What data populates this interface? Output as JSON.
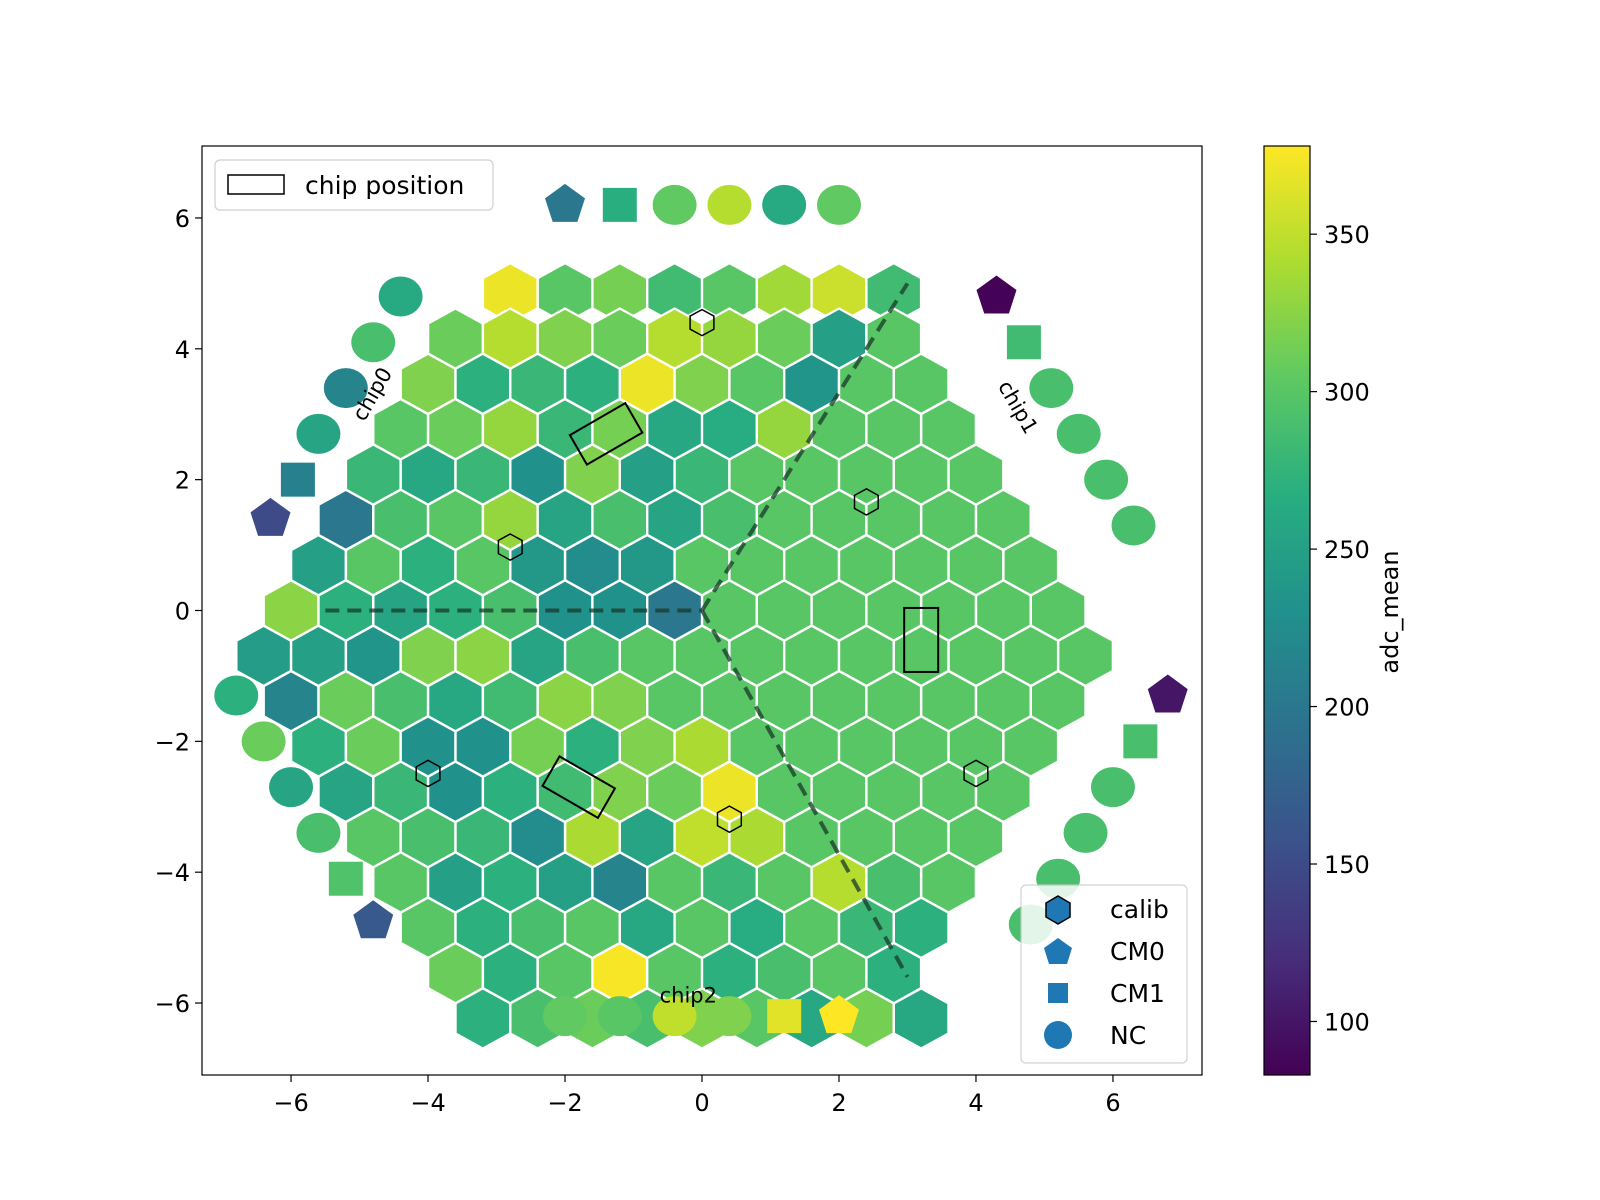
{
  "chart_data": {
    "type": "heatmap",
    "subtype": "hexagonal sensor map",
    "xlim": [
      -7.3,
      7.3
    ],
    "ylim": [
      -7.1,
      7.1
    ],
    "xticks": [
      -6,
      -4,
      -2,
      0,
      2,
      4,
      6
    ],
    "yticks": [
      -6,
      -4,
      -2,
      0,
      2,
      4,
      6
    ],
    "xtick_labels": [
      "−6",
      "−4",
      "−2",
      "0",
      "2",
      "4",
      "6"
    ],
    "ytick_labels": [
      "−6",
      "−4",
      "−2",
      "0",
      "2",
      "4",
      "6"
    ],
    "grid": false,
    "colormap": "viridis",
    "colorbar": {
      "label": "adc_mean",
      "range": [
        83,
        378
      ],
      "ticks": [
        100,
        150,
        200,
        250,
        300,
        350
      ],
      "tick_labels": [
        "100",
        "150",
        "200",
        "250",
        "300",
        "350"
      ]
    },
    "hex_grid": {
      "center": [
        0,
        0
      ],
      "row_spacing": 0.6928,
      "cell_spacing": 0.8,
      "rows": [
        {
          "y_index": 7,
          "x_start": -2.8,
          "values": [
            370,
            300,
            315,
            285,
            300,
            335,
            355,
            285
          ]
        },
        {
          "y_index": 6,
          "x_start": -3.6,
          "values": [
            310,
            345,
            320,
            310,
            345,
            330,
            310,
            250,
            300
          ]
        },
        {
          "y_index": 5,
          "x_start": -4.0,
          "values": [
            320,
            270,
            280,
            270,
            370,
            320,
            300,
            235,
            300,
            300
          ]
        },
        {
          "y_index": 4,
          "x_start": -4.4,
          "values": [
            300,
            310,
            330,
            280,
            315,
            260,
            265,
            330,
            300,
            300,
            300
          ]
        },
        {
          "y_index": 3,
          "x_start": -4.8,
          "values": [
            280,
            260,
            280,
            230,
            320,
            250,
            280,
            300,
            300,
            300,
            300,
            300
          ]
        },
        {
          "y_index": 2,
          "x_start": -5.2,
          "values": [
            200,
            290,
            300,
            330,
            255,
            290,
            255,
            290,
            300,
            300,
            300,
            300,
            300
          ]
        },
        {
          "y_index": 1,
          "x_start": -5.6,
          "values": [
            250,
            300,
            270,
            300,
            240,
            225,
            240,
            300,
            300,
            300,
            300,
            300,
            300,
            300
          ]
        },
        {
          "y_index": 0,
          "x_start": -6.0,
          "values": [
            325,
            270,
            255,
            270,
            290,
            230,
            230,
            200,
            300,
            300,
            300,
            300,
            300,
            300,
            300
          ]
        },
        {
          "y_index": -1,
          "x_start": -6.4,
          "values": [
            245,
            250,
            235,
            320,
            325,
            255,
            290,
            300,
            300,
            300,
            300,
            300,
            300,
            300,
            300,
            300
          ]
        },
        {
          "y_index": -2,
          "x_start": -6.0,
          "values": [
            215,
            310,
            290,
            260,
            285,
            325,
            320,
            300,
            300,
            300,
            300,
            300,
            300,
            300,
            300
          ]
        },
        {
          "y_index": -3,
          "x_start": -5.6,
          "values": [
            270,
            310,
            230,
            230,
            315,
            270,
            320,
            340,
            300,
            300,
            300,
            300,
            300,
            300
          ]
        },
        {
          "y_index": -4,
          "x_start": -5.2,
          "values": [
            255,
            280,
            230,
            270,
            285,
            320,
            310,
            370,
            300,
            300,
            300,
            300,
            300
          ]
        },
        {
          "y_index": -5,
          "x_start": -4.8,
          "values": [
            300,
            290,
            280,
            225,
            340,
            255,
            350,
            340,
            300,
            300,
            300,
            300
          ]
        },
        {
          "y_index": -6,
          "x_start": -4.4,
          "values": [
            300,
            250,
            270,
            250,
            215,
            300,
            280,
            300,
            345,
            290,
            300
          ]
        },
        {
          "y_index": -7,
          "x_start": -4.0,
          "values": [
            300,
            270,
            290,
            300,
            260,
            300,
            265,
            300,
            280,
            270
          ]
        },
        {
          "y_index": -8,
          "x_start": -3.6,
          "values": [
            310,
            270,
            300,
            375,
            300,
            270,
            290,
            300,
            270
          ]
        },
        {
          "y_index": -9,
          "x_start": -3.2,
          "values": [
            270,
            290,
            310,
            290,
            320,
            300,
            260,
            315,
            260
          ]
        }
      ]
    },
    "calib_cells": [
      [
        0,
        4.4
      ],
      [
        -2.8,
        0.97
      ],
      [
        2.4,
        1.66
      ],
      [
        -4.0,
        -2.49
      ],
      [
        4.0,
        -2.49
      ],
      [
        0.4,
        -3.19
      ]
    ],
    "chip_positions": [
      {
        "center": [
          -1.4,
          2.7
        ],
        "angle": -30
      },
      {
        "center": [
          -1.8,
          -2.7
        ],
        "angle": 30
      },
      {
        "center": [
          3.2,
          -0.45
        ],
        "angle": 90
      }
    ],
    "boundaries": [
      {
        "points": [
          [
            -5.5,
            0
          ],
          [
            0,
            0
          ]
        ]
      },
      {
        "points": [
          [
            0,
            0
          ],
          [
            3.0,
            5.0
          ]
        ]
      },
      {
        "points": [
          [
            0,
            0
          ],
          [
            3.0,
            -5.6
          ]
        ]
      }
    ],
    "chip_labels": [
      {
        "text": "chip0",
        "x": -4.8,
        "y": 3.3,
        "rotate": -60
      },
      {
        "text": "chip1",
        "x": 4.6,
        "y": 3.1,
        "rotate": 60
      },
      {
        "text": "chip2",
        "x": -0.2,
        "y": -5.9,
        "rotate": 0
      }
    ],
    "outer_markers": [
      {
        "shape": "pentagon",
        "x": -2.0,
        "y": 6.2,
        "v": 200
      },
      {
        "shape": "square",
        "x": -1.2,
        "y": 6.2,
        "v": 268
      },
      {
        "shape": "circle",
        "x": -0.4,
        "y": 6.2,
        "v": 305
      },
      {
        "shape": "circle",
        "x": 0.4,
        "y": 6.2,
        "v": 345
      },
      {
        "shape": "circle",
        "x": 1.2,
        "y": 6.2,
        "v": 262
      },
      {
        "shape": "circle",
        "x": 2.0,
        "y": 6.2,
        "v": 305
      },
      {
        "shape": "circle",
        "x": -4.4,
        "y": 4.8,
        "v": 262
      },
      {
        "shape": "circle",
        "x": -4.8,
        "y": 4.1,
        "v": 290
      },
      {
        "shape": "circle",
        "x": -5.2,
        "y": 3.4,
        "v": 215
      },
      {
        "shape": "circle",
        "x": -5.6,
        "y": 2.7,
        "v": 255
      },
      {
        "shape": "square",
        "x": -5.9,
        "y": 2.0,
        "v": 210
      },
      {
        "shape": "pentagon",
        "x": -6.3,
        "y": 1.4,
        "v": 150
      },
      {
        "shape": "pentagon",
        "x": 4.3,
        "y": 4.8,
        "v": 85
      },
      {
        "shape": "square",
        "x": 4.7,
        "y": 4.1,
        "v": 285
      },
      {
        "shape": "circle",
        "x": 5.1,
        "y": 3.4,
        "v": 290
      },
      {
        "shape": "circle",
        "x": 5.5,
        "y": 2.7,
        "v": 290
      },
      {
        "shape": "circle",
        "x": 5.9,
        "y": 2.0,
        "v": 290
      },
      {
        "shape": "circle",
        "x": 6.3,
        "y": 1.3,
        "v": 290
      },
      {
        "shape": "circle",
        "x": -6.8,
        "y": -1.3,
        "v": 270
      },
      {
        "shape": "circle",
        "x": -6.4,
        "y": -2.0,
        "v": 310
      },
      {
        "shape": "circle",
        "x": -6.0,
        "y": -2.7,
        "v": 255
      },
      {
        "shape": "circle",
        "x": -5.6,
        "y": -3.4,
        "v": 290
      },
      {
        "shape": "square",
        "x": -5.2,
        "y": -4.1,
        "v": 295
      },
      {
        "shape": "pentagon",
        "x": -4.8,
        "y": -4.75,
        "v": 165
      },
      {
        "shape": "pentagon",
        "x": 6.8,
        "y": -1.3,
        "v": 100
      },
      {
        "shape": "square",
        "x": 6.4,
        "y": -2.0,
        "v": 290
      },
      {
        "shape": "circle",
        "x": 6.0,
        "y": -2.7,
        "v": 290
      },
      {
        "shape": "circle",
        "x": 5.6,
        "y": -3.4,
        "v": 290
      },
      {
        "shape": "circle",
        "x": 5.2,
        "y": -4.1,
        "v": 290
      },
      {
        "shape": "circle",
        "x": 4.8,
        "y": -4.8,
        "v": 290
      },
      {
        "shape": "circle",
        "x": -2.0,
        "y": -6.2,
        "v": 305
      },
      {
        "shape": "circle",
        "x": -1.2,
        "y": -6.2,
        "v": 300
      },
      {
        "shape": "circle",
        "x": -0.4,
        "y": -6.2,
        "v": 350
      },
      {
        "shape": "circle",
        "x": 0.4,
        "y": -6.2,
        "v": 320
      },
      {
        "shape": "square",
        "x": 1.2,
        "y": -6.2,
        "v": 365
      },
      {
        "shape": "pentagon",
        "x": 2.0,
        "y": -6.2,
        "v": 378
      }
    ],
    "legends": [
      {
        "position": "top-left",
        "entries": [
          {
            "label": "chip position",
            "marker": "rectangle"
          }
        ]
      },
      {
        "position": "bottom-right",
        "entries": [
          {
            "label": "calib",
            "marker": "hexagon"
          },
          {
            "label": "CM0",
            "marker": "pentagon"
          },
          {
            "label": "CM1",
            "marker": "square"
          },
          {
            "label": "NC",
            "marker": "circle"
          }
        ]
      }
    ],
    "colors": {
      "hex_edge": "#ffffff",
      "legend_marker": "#1f77b4",
      "boundary": "#1a3a2a"
    }
  }
}
